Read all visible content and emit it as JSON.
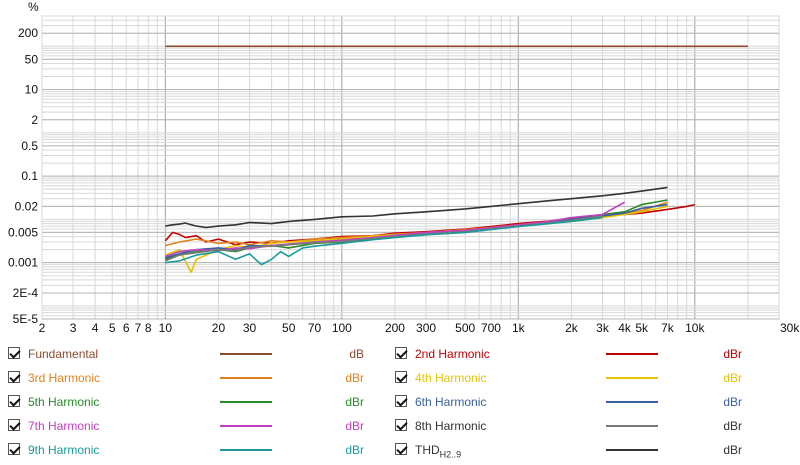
{
  "chart_data": {
    "type": "line",
    "ylabel": "%",
    "xunit": "kHz",
    "x_scale": "log",
    "y_scale": "log",
    "xlim": [
      2,
      30000
    ],
    "ylim": [
      5e-05,
      500
    ],
    "x_ticks": [
      {
        "v": 2,
        "label": "2"
      },
      {
        "v": 3,
        "label": "3"
      },
      {
        "v": 4,
        "label": "4"
      },
      {
        "v": 5,
        "label": "5"
      },
      {
        "v": 6,
        "label": "6"
      },
      {
        "v": 7,
        "label": "7"
      },
      {
        "v": 8,
        "label": "8"
      },
      {
        "v": 10,
        "label": "10"
      },
      {
        "v": 20,
        "label": "20"
      },
      {
        "v": 30,
        "label": "30"
      },
      {
        "v": 50,
        "label": "50"
      },
      {
        "v": 70,
        "label": "70"
      },
      {
        "v": 100,
        "label": "100"
      },
      {
        "v": 200,
        "label": "200"
      },
      {
        "v": 300,
        "label": "300"
      },
      {
        "v": 500,
        "label": "500"
      },
      {
        "v": 700,
        "label": "700"
      },
      {
        "v": 1000,
        "label": "1k"
      },
      {
        "v": 2000,
        "label": "2k"
      },
      {
        "v": 3000,
        "label": "3k"
      },
      {
        "v": 4000,
        "label": "4k"
      },
      {
        "v": 5000,
        "label": "5k"
      },
      {
        "v": 7000,
        "label": "7k"
      },
      {
        "v": 10000,
        "label": "10k"
      },
      {
        "v": 30000,
        "label": "30kHz"
      }
    ],
    "y_ticks": [
      {
        "v": 200,
        "label": "200"
      },
      {
        "v": 50,
        "label": "50"
      },
      {
        "v": 10,
        "label": "10"
      },
      {
        "v": 2,
        "label": "2"
      },
      {
        "v": 0.5,
        "label": "0.5"
      },
      {
        "v": 0.1,
        "label": "0.1"
      },
      {
        "v": 0.02,
        "label": "0.02"
      },
      {
        "v": 0.005,
        "label": "0.005"
      },
      {
        "v": 0.001,
        "label": "0.001"
      },
      {
        "v": 0.0002,
        "label": "2E-4"
      },
      {
        "v": 5e-05,
        "label": "5E-5"
      }
    ],
    "grid": true,
    "legend_position": "bottom",
    "series": [
      {
        "name": "Fundamental",
        "unit": "dB",
        "color": "#8b4a2b",
        "checked": true,
        "x": [
          10,
          20000
        ],
        "y": [
          100,
          100
        ]
      },
      {
        "name": "2nd Harmonic",
        "unit": "dBr",
        "color": "#c00000",
        "checked": true,
        "x": [
          10,
          11,
          12,
          13,
          15,
          17,
          20,
          25,
          30,
          40,
          50,
          70,
          100,
          150,
          200,
          300,
          500,
          700,
          1000,
          1500,
          2000,
          3000,
          4000,
          5000,
          7000,
          9000,
          10000
        ],
        "y": [
          0.0032,
          0.005,
          0.0045,
          0.0038,
          0.0042,
          0.003,
          0.0035,
          0.0026,
          0.003,
          0.0028,
          0.0032,
          0.0035,
          0.004,
          0.0042,
          0.0048,
          0.0052,
          0.006,
          0.0068,
          0.008,
          0.0092,
          0.0105,
          0.012,
          0.013,
          0.014,
          0.017,
          0.02,
          0.022
        ]
      },
      {
        "name": "3rd Harmonic",
        "unit": "dBr",
        "color": "#e0801a",
        "checked": true,
        "x": [
          10,
          12,
          15,
          20,
          25,
          30,
          40,
          50,
          70,
          100,
          150,
          200,
          300,
          500,
          700,
          1000,
          1500,
          2000,
          3000,
          4000,
          5000,
          7000
        ],
        "y": [
          0.0025,
          0.003,
          0.0035,
          0.0028,
          0.003,
          0.0026,
          0.0032,
          0.003,
          0.0035,
          0.0038,
          0.0042,
          0.0045,
          0.005,
          0.0058,
          0.0065,
          0.0075,
          0.009,
          0.01,
          0.012,
          0.014,
          0.016,
          0.025
        ]
      },
      {
        "name": "4th Harmonic",
        "unit": "dBr",
        "color": "#e6c200",
        "checked": true,
        "x": [
          10,
          12,
          14,
          15,
          17,
          20,
          25,
          30,
          40,
          50,
          70,
          100,
          150,
          200,
          300,
          500,
          700,
          1000,
          1500,
          2000,
          3000,
          4000,
          5000,
          7000
        ],
        "y": [
          0.0015,
          0.002,
          0.0006,
          0.0012,
          0.0015,
          0.002,
          0.0025,
          0.0022,
          0.0028,
          0.003,
          0.0032,
          0.0035,
          0.004,
          0.0045,
          0.0048,
          0.0055,
          0.006,
          0.007,
          0.0085,
          0.009,
          0.011,
          0.013,
          0.015,
          0.02
        ]
      },
      {
        "name": "5th Harmonic",
        "unit": "dBr",
        "color": "#2a8a2a",
        "checked": true,
        "x": [
          10,
          12,
          15,
          20,
          25,
          30,
          40,
          50,
          70,
          100,
          150,
          200,
          300,
          500,
          700,
          1000,
          1500,
          2000,
          3000,
          4000,
          5000,
          7000
        ],
        "y": [
          0.0012,
          0.0015,
          0.0018,
          0.002,
          0.0018,
          0.0022,
          0.0025,
          0.0022,
          0.0028,
          0.003,
          0.0035,
          0.004,
          0.0045,
          0.005,
          0.006,
          0.007,
          0.008,
          0.01,
          0.013,
          0.015,
          0.022,
          0.028
        ]
      },
      {
        "name": "6th Harmonic",
        "unit": "dBr",
        "color": "#3a5fa0",
        "checked": true,
        "x": [
          10,
          12,
          15,
          20,
          25,
          30,
          40,
          50,
          70,
          100,
          150,
          200,
          300,
          500,
          700,
          1000,
          1500,
          2000,
          3000,
          4000,
          5000,
          7000
        ],
        "y": [
          0.0013,
          0.0016,
          0.002,
          0.0022,
          0.002,
          0.0025,
          0.0024,
          0.0026,
          0.003,
          0.0032,
          0.0036,
          0.0042,
          0.0048,
          0.0055,
          0.0062,
          0.0072,
          0.0085,
          0.01,
          0.012,
          0.014,
          0.018,
          0.022
        ]
      },
      {
        "name": "7th Harmonic",
        "unit": "dBr",
        "color": "#c040c0",
        "checked": true,
        "x": [
          10,
          12,
          15,
          20,
          25,
          30,
          40,
          50,
          70,
          100,
          150,
          200,
          300,
          500,
          700,
          1000,
          1500,
          2000,
          3000,
          4000
        ],
        "y": [
          0.0014,
          0.0018,
          0.002,
          0.0019,
          0.0022,
          0.0021,
          0.0025,
          0.0027,
          0.003,
          0.0033,
          0.0038,
          0.0043,
          0.005,
          0.0056,
          0.0064,
          0.0075,
          0.009,
          0.011,
          0.013,
          0.025
        ]
      },
      {
        "name": "8th Harmonic",
        "unit": "dBr",
        "color": "#7a7a7a",
        "checked": true,
        "x": [
          10,
          12,
          15,
          20,
          25,
          30,
          40,
          50,
          70,
          100,
          150,
          200,
          300,
          500,
          700,
          1000,
          1500,
          2000,
          3000
        ],
        "y": [
          0.0011,
          0.0015,
          0.0017,
          0.002,
          0.0019,
          0.0023,
          0.0024,
          0.0026,
          0.0029,
          0.0031,
          0.0036,
          0.004,
          0.0046,
          0.0052,
          0.006,
          0.007,
          0.0082,
          0.0095,
          0.012
        ]
      },
      {
        "name": "9th Harmonic",
        "unit": "dBr",
        "color": "#1a9a9a",
        "checked": true,
        "x": [
          10,
          12,
          15,
          20,
          25,
          30,
          35,
          40,
          45,
          50,
          60,
          70,
          100,
          150,
          200,
          300,
          500,
          700,
          1000,
          1500,
          2000,
          3000
        ],
        "y": [
          0.001,
          0.0011,
          0.0015,
          0.0018,
          0.0012,
          0.0016,
          0.0009,
          0.0012,
          0.0018,
          0.0014,
          0.0022,
          0.0024,
          0.0028,
          0.0034,
          0.0038,
          0.0044,
          0.005,
          0.0058,
          0.0068,
          0.008,
          0.009,
          0.011
        ]
      },
      {
        "name": "THD",
        "sub": "H2..9",
        "unit": "dBr",
        "color": "#333333",
        "checked": true,
        "x": [
          10,
          11,
          12,
          13,
          15,
          17,
          20,
          25,
          30,
          40,
          50,
          70,
          100,
          150,
          200,
          300,
          500,
          700,
          1000,
          1500,
          2000,
          3000,
          4000,
          5000,
          7000
        ],
        "y": [
          0.007,
          0.0075,
          0.0078,
          0.0082,
          0.007,
          0.0065,
          0.007,
          0.0075,
          0.0085,
          0.008,
          0.009,
          0.01,
          0.0115,
          0.012,
          0.0135,
          0.015,
          0.0175,
          0.02,
          0.023,
          0.027,
          0.03,
          0.035,
          0.04,
          0.045,
          0.055
        ]
      }
    ]
  }
}
